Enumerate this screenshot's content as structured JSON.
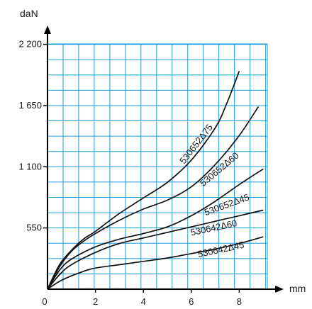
{
  "chart_data": {
    "type": "line",
    "title": "",
    "xlabel": "mm",
    "ylabel": "daN",
    "xlim": [
      0,
      9.3
    ],
    "ylim": [
      0,
      2200
    ],
    "x_ticks": [
      0,
      2,
      4,
      6,
      8
    ],
    "x_tick_labels": [
      "0",
      "2",
      "4",
      "6",
      "8"
    ],
    "y_ticks": [
      550,
      1100,
      1650,
      2200
    ],
    "y_tick_labels": [
      "550",
      "1 100",
      "1 650",
      "2 200"
    ],
    "grid": true,
    "grid_step_x": 0.65,
    "grid_step_y": 137.5,
    "grid_color": "#1f9bd7",
    "line_color": "#111111",
    "series": [
      {
        "name": "530652Δ75",
        "x": [
          0,
          0.5,
          1,
          1.5,
          2,
          3,
          4,
          5,
          6,
          7,
          7.5,
          8
        ],
        "y": [
          0,
          220,
          350,
          450,
          520,
          680,
          820,
          960,
          1160,
          1450,
          1680,
          1960
        ]
      },
      {
        "name": "530652Δ60",
        "x": [
          0,
          0.5,
          1,
          1.5,
          2,
          3,
          4,
          5,
          6,
          7,
          8,
          8.8
        ],
        "y": [
          0,
          200,
          340,
          430,
          500,
          620,
          720,
          800,
          920,
          1120,
          1380,
          1640
        ]
      },
      {
        "name": "530652Δ45",
        "x": [
          0,
          0.5,
          1,
          2,
          3,
          4,
          5,
          6,
          7,
          8,
          9
        ],
        "y": [
          0,
          170,
          270,
          380,
          450,
          500,
          560,
          660,
          790,
          940,
          1080
        ]
      },
      {
        "name": "530642Δ60",
        "x": [
          0,
          0.5,
          1,
          2,
          3,
          4,
          5,
          6,
          7,
          8,
          9
        ],
        "y": [
          0,
          130,
          220,
          330,
          410,
          460,
          510,
          560,
          610,
          660,
          710
        ]
      },
      {
        "name": "530642Δ45",
        "x": [
          0,
          0.5,
          1,
          1.5,
          2,
          3,
          4,
          5,
          6,
          7,
          8,
          9
        ],
        "y": [
          0,
          70,
          120,
          160,
          190,
          220,
          250,
          280,
          320,
          360,
          410,
          470
        ]
      }
    ]
  }
}
